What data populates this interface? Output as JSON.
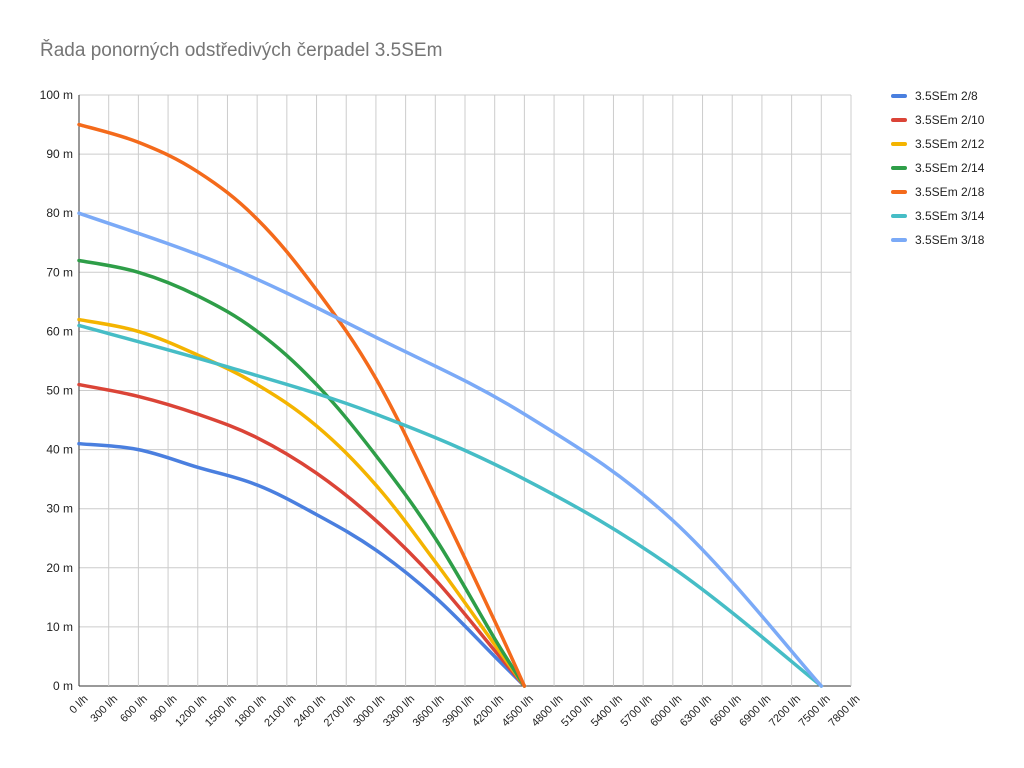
{
  "chart_data": {
    "type": "line",
    "title": "Řada ponorných odstředivých čerpadel 3.5SEm",
    "xlabel": "",
    "ylabel": "",
    "x_unit": "l/h",
    "y_unit": "m",
    "xlim": [
      0,
      7800
    ],
    "ylim": [
      0,
      100
    ],
    "x_ticks": [
      "0 l/h",
      "300 l/h",
      "600 l/h",
      "900 l/h",
      "1200 l/h",
      "1500 l/h",
      "1800 l/h",
      "2100 l/h",
      "2400 l/h",
      "2700 l/h",
      "3000 l/h",
      "3300 l/h",
      "3600 l/h",
      "3900 l/h",
      "4200 l/h",
      "4500 l/h",
      "4800 l/h",
      "5100 l/h",
      "5400 l/h",
      "5700 l/h",
      "6000 l/h",
      "6300 l/h",
      "6600 l/h",
      "6900 l/h",
      "7200 l/h",
      "7500 l/h",
      "7800 l/h"
    ],
    "y_ticks": [
      "0 m",
      "10 m",
      "20 m",
      "30 m",
      "40 m",
      "50 m",
      "60 m",
      "70 m",
      "80 m",
      "90 m",
      "100 m"
    ],
    "grid": true,
    "legend_position": "right",
    "series": [
      {
        "name": "3.5SEm 2/8",
        "color": "#4A7FDF",
        "x": [
          0,
          600,
          1200,
          1800,
          2400,
          3000,
          3600,
          4200,
          4500
        ],
        "values": [
          41,
          40,
          37,
          34,
          29,
          23,
          15,
          5,
          0
        ]
      },
      {
        "name": "3.5SEm 2/10",
        "color": "#DB4437",
        "x": [
          0,
          600,
          1200,
          1800,
          2400,
          3000,
          3600,
          4200,
          4500
        ],
        "values": [
          51,
          49,
          46,
          42,
          36,
          28,
          18,
          6,
          0
        ]
      },
      {
        "name": "3.5SEm 2/12",
        "color": "#F4B400",
        "x": [
          0,
          600,
          1200,
          1800,
          2400,
          3000,
          3600,
          4200,
          4500
        ],
        "values": [
          62,
          60,
          56,
          51,
          44,
          34,
          21,
          7,
          0
        ]
      },
      {
        "name": "3.5SEm 2/14",
        "color": "#2E9E48",
        "x": [
          0,
          600,
          1200,
          1800,
          2400,
          3000,
          3600,
          4200,
          4500
        ],
        "values": [
          72,
          70,
          66,
          60,
          51,
          39,
          25,
          8,
          0
        ]
      },
      {
        "name": "3.5SEm 2/18",
        "color": "#F46A1B",
        "x": [
          0,
          600,
          1200,
          1800,
          2400,
          3000,
          3600,
          4200,
          4500
        ],
        "values": [
          95,
          92,
          87,
          79,
          67,
          52,
          32,
          11,
          0
        ]
      },
      {
        "name": "3.5SEm 3/14",
        "color": "#46BDC6",
        "x": [
          0,
          1500,
          3000,
          4500,
          6000,
          7500
        ],
        "values": [
          61,
          54,
          46,
          35,
          20,
          0
        ]
      },
      {
        "name": "3.5SEm 3/18",
        "color": "#7BAAF7",
        "x": [
          0,
          1500,
          3000,
          4500,
          6000,
          7500
        ],
        "values": [
          80,
          71,
          59,
          46,
          28,
          0
        ]
      }
    ]
  }
}
